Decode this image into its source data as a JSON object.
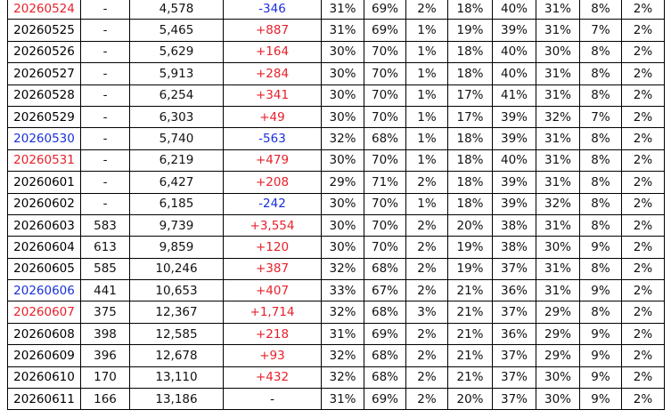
{
  "table": {
    "rows": [
      [
        "20260524",
        "-",
        "4,578",
        "-346",
        "31%",
        "69%",
        "2%",
        "18%",
        "40%",
        "31%",
        "8%",
        "2%"
      ],
      [
        "20260525",
        "-",
        "5,465",
        "+887",
        "31%",
        "69%",
        "1%",
        "19%",
        "39%",
        "31%",
        "7%",
        "2%"
      ],
      [
        "20260526",
        "-",
        "5,629",
        "+164",
        "30%",
        "70%",
        "1%",
        "18%",
        "40%",
        "30%",
        "8%",
        "2%"
      ],
      [
        "20260527",
        "-",
        "5,913",
        "+284",
        "30%",
        "70%",
        "1%",
        "18%",
        "40%",
        "31%",
        "8%",
        "2%"
      ],
      [
        "20260528",
        "-",
        "6,254",
        "+341",
        "30%",
        "70%",
        "1%",
        "17%",
        "41%",
        "31%",
        "8%",
        "2%"
      ],
      [
        "20260529",
        "-",
        "6,303",
        "+49",
        "30%",
        "70%",
        "1%",
        "17%",
        "39%",
        "32%",
        "7%",
        "2%"
      ],
      [
        "20260530",
        "-",
        "5,740",
        "-563",
        "32%",
        "68%",
        "1%",
        "18%",
        "39%",
        "31%",
        "8%",
        "2%"
      ],
      [
        "20260531",
        "-",
        "6,219",
        "+479",
        "30%",
        "70%",
        "1%",
        "18%",
        "40%",
        "31%",
        "8%",
        "2%"
      ],
      [
        "20260601",
        "-",
        "6,427",
        "+208",
        "29%",
        "71%",
        "2%",
        "18%",
        "39%",
        "31%",
        "8%",
        "2%"
      ],
      [
        "20260602",
        "-",
        "6,185",
        "-242",
        "30%",
        "70%",
        "1%",
        "18%",
        "39%",
        "32%",
        "8%",
        "2%"
      ],
      [
        "20260603",
        "583",
        "9,739",
        "+3,554",
        "30%",
        "70%",
        "2%",
        "20%",
        "38%",
        "31%",
        "8%",
        "2%"
      ],
      [
        "20260604",
        "613",
        "9,859",
        "+120",
        "30%",
        "70%",
        "2%",
        "19%",
        "38%",
        "30%",
        "9%",
        "2%"
      ],
      [
        "20260605",
        "585",
        "10,246",
        "+387",
        "32%",
        "68%",
        "2%",
        "19%",
        "37%",
        "31%",
        "8%",
        "2%"
      ],
      [
        "20260606",
        "441",
        "10,653",
        "+407",
        "33%",
        "67%",
        "2%",
        "21%",
        "36%",
        "31%",
        "9%",
        "2%"
      ],
      [
        "20260607",
        "375",
        "12,367",
        "+1,714",
        "32%",
        "68%",
        "3%",
        "21%",
        "37%",
        "29%",
        "8%",
        "2%"
      ],
      [
        "20260608",
        "398",
        "12,585",
        "+218",
        "31%",
        "69%",
        "2%",
        "21%",
        "36%",
        "29%",
        "9%",
        "2%"
      ],
      [
        "20260609",
        "396",
        "12,678",
        "+93",
        "32%",
        "68%",
        "2%",
        "21%",
        "37%",
        "29%",
        "9%",
        "2%"
      ],
      [
        "20260610",
        "170",
        "13,110",
        "+432",
        "32%",
        "68%",
        "2%",
        "21%",
        "37%",
        "30%",
        "9%",
        "2%"
      ],
      [
        "20260611",
        "166",
        "13,186",
        "-",
        "31%",
        "69%",
        "2%",
        "20%",
        "37%",
        "30%",
        "9%",
        "2%"
      ]
    ],
    "date_colors": [
      "#e8202a",
      "#000000",
      "#000000",
      "#000000",
      "#000000",
      "#000000",
      "#1a2fd8",
      "#e8202a",
      "#000000",
      "#000000",
      "#000000",
      "#000000",
      "#000000",
      "#1a2fd8",
      "#e8202a",
      "#000000",
      "#000000",
      "#000000",
      "#000000"
    ],
    "change_colors": [
      "#1a2fd8",
      "#e8202a",
      "#e8202a",
      "#e8202a",
      "#e8202a",
      "#e8202a",
      "#1a2fd8",
      "#e8202a",
      "#e8202a",
      "#1a2fd8",
      "#e8202a",
      "#e8202a",
      "#e8202a",
      "#e8202a",
      "#e8202a",
      "#e8202a",
      "#e8202a",
      "#e8202a",
      "#000000"
    ]
  }
}
